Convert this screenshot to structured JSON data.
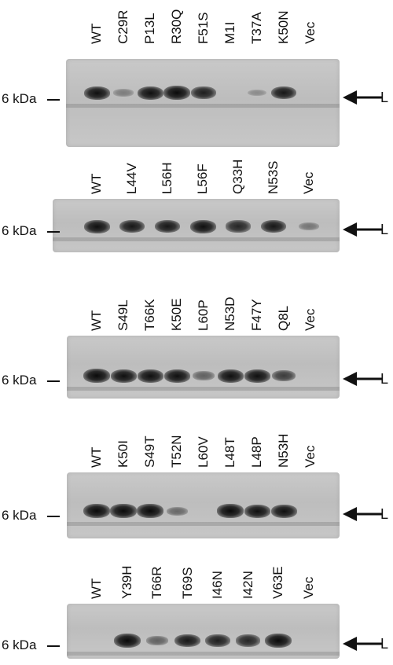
{
  "marker_label": "6 kDa",
  "band_label": "L",
  "panels": [
    {
      "lanes": [
        "WT",
        "C29R",
        "P13L",
        "R30Q",
        "F51S",
        "M1I",
        "T37A",
        "K50N",
        "Vec"
      ],
      "band_intensity": [
        0.9,
        0.15,
        0.9,
        1.0,
        0.8,
        0.0,
        0.05,
        0.85,
        0.0
      ]
    },
    {
      "lanes": [
        "WT",
        "L44V",
        "L56H",
        "L56F",
        "Q33H",
        "N53S",
        "Vec"
      ],
      "band_intensity": [
        0.9,
        0.85,
        0.85,
        0.9,
        0.75,
        0.85,
        0.2
      ]
    },
    {
      "lanes": [
        "WT",
        "S49L",
        "T66K",
        "K50E",
        "L60P",
        "N53D",
        "F47Y",
        "Q8L",
        "Vec"
      ],
      "band_intensity": [
        1.0,
        0.9,
        0.9,
        0.9,
        0.35,
        0.9,
        0.9,
        0.6,
        0.0
      ]
    },
    {
      "lanes": [
        "WT",
        "K50I",
        "S49T",
        "T52N",
        "L60V",
        "L48T",
        "L48P",
        "N53H",
        "Vec"
      ],
      "band_intensity": [
        1.0,
        0.95,
        0.95,
        0.3,
        0.0,
        0.95,
        0.9,
        0.9,
        0.0
      ]
    },
    {
      "lanes": [
        "WT",
        "Y39H",
        "T66R",
        "T69S",
        "I46N",
        "I42N",
        "V63E",
        "Vec"
      ],
      "band_intensity": [
        0.0,
        1.0,
        0.35,
        0.85,
        0.8,
        0.75,
        1.0,
        0.0
      ]
    }
  ]
}
